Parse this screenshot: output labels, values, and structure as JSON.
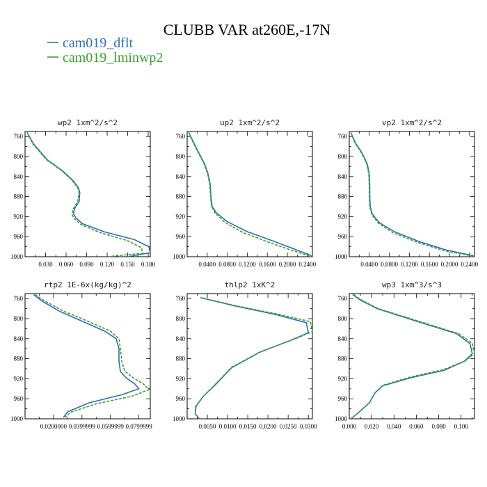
{
  "title": "CLUBB VAR at260E,-17N",
  "legend": [
    {
      "label": "cam019_dflt",
      "color": "#2f6db5",
      "dash": "solid"
    },
    {
      "label": "cam019_lminwp2",
      "color": "#3a9f2f",
      "dash": "dashed"
    }
  ],
  "y_axis": {
    "ticks": [
      760,
      800,
      840,
      880,
      920,
      960,
      1000
    ],
    "ylim": [
      750,
      1000
    ]
  },
  "chart_data": [
    {
      "type": "line",
      "title": "wp2  1xm^2/s^2",
      "xlim": [
        0.0,
        0.183
      ],
      "xticks": [
        0.03,
        0.06,
        0.09,
        0.12,
        0.15,
        0.18
      ],
      "xtick_labels": [
        "0.030",
        "0.060",
        "0.090",
        "0.120",
        "0.150",
        "0.180"
      ],
      "series": [
        {
          "name": "cam019_dflt",
          "x": [
            0.003,
            0.012,
            0.032,
            0.056,
            0.07,
            0.078,
            0.08,
            0.079,
            0.072,
            0.071,
            0.074,
            0.084,
            0.115,
            0.16,
            0.181,
            0.183,
            0.15
          ],
          "y": [
            752,
            774,
            806,
            830,
            848,
            862,
            872,
            890,
            905,
            915,
            922,
            934,
            950,
            966,
            980,
            992,
            1000
          ]
        },
        {
          "name": "cam019_lminwp2",
          "x": [
            0.003,
            0.011,
            0.031,
            0.055,
            0.069,
            0.077,
            0.079,
            0.077,
            0.07,
            0.069,
            0.072,
            0.082,
            0.11,
            0.15,
            0.17,
            0.172,
            0.12
          ],
          "y": [
            752,
            774,
            806,
            830,
            848,
            862,
            872,
            890,
            905,
            917,
            924,
            936,
            952,
            968,
            982,
            993,
            1000
          ]
        }
      ]
    },
    {
      "type": "line",
      "title": "up2  1xm^2/s^2",
      "xlim": [
        0.0,
        0.25
      ],
      "xticks": [
        0.04,
        0.08,
        0.12,
        0.16,
        0.2,
        0.24
      ],
      "xtick_labels": [
        "0.0400",
        "0.0800",
        "0.1200",
        "0.1600",
        "0.2000",
        "0.2400"
      ],
      "series": [
        {
          "name": "cam019_dflt",
          "x": [
            0.003,
            0.012,
            0.022,
            0.035,
            0.042,
            0.046,
            0.047,
            0.048,
            0.05,
            0.058,
            0.08,
            0.12,
            0.17,
            0.215,
            0.248
          ],
          "y": [
            752,
            770,
            790,
            815,
            835,
            855,
            870,
            885,
            900,
            912,
            930,
            950,
            968,
            985,
            998
          ]
        },
        {
          "name": "cam019_lminwp2",
          "x": [
            0.003,
            0.011,
            0.021,
            0.034,
            0.041,
            0.045,
            0.046,
            0.047,
            0.049,
            0.056,
            0.076,
            0.112,
            0.16,
            0.205,
            0.243
          ],
          "y": [
            752,
            770,
            790,
            815,
            835,
            855,
            870,
            885,
            900,
            913,
            932,
            952,
            970,
            986,
            998
          ]
        }
      ]
    },
    {
      "type": "line",
      "title": "vp2  1xm^2/s^2",
      "xlim": [
        0.0,
        0.25
      ],
      "xticks": [
        0.04,
        0.08,
        0.12,
        0.16,
        0.2,
        0.24
      ],
      "xtick_labels": [
        "0.0400",
        "0.0800",
        "0.1200",
        "0.1600",
        "0.2000",
        "0.2400"
      ],
      "series": [
        {
          "name": "cam019_dflt",
          "x": [
            0.003,
            0.012,
            0.025,
            0.036,
            0.04,
            0.041,
            0.041,
            0.042,
            0.046,
            0.06,
            0.09,
            0.14,
            0.195,
            0.248
          ],
          "y": [
            752,
            772,
            792,
            815,
            835,
            860,
            880,
            900,
            915,
            932,
            950,
            970,
            987,
            998
          ]
        },
        {
          "name": "cam019_lminwp2",
          "x": [
            0.003,
            0.011,
            0.024,
            0.035,
            0.039,
            0.04,
            0.04,
            0.041,
            0.045,
            0.058,
            0.087,
            0.135,
            0.19,
            0.243
          ],
          "y": [
            752,
            772,
            792,
            815,
            835,
            860,
            880,
            900,
            916,
            933,
            952,
            971,
            988,
            998
          ]
        }
      ]
    },
    {
      "type": "line",
      "title": "rtp2  1E-6x(kg/kg)^2",
      "xlim": [
        0.0,
        0.088
      ],
      "xticks": [
        0.02,
        0.04,
        0.06,
        0.08
      ],
      "xtick_labels": [
        "0.0200000",
        "0.0399999",
        "0.0599999",
        "0.0799999"
      ],
      "series": [
        {
          "name": "cam019_dflt",
          "x": [
            0.006,
            0.012,
            0.024,
            0.04,
            0.056,
            0.064,
            0.066,
            0.066,
            0.067,
            0.071,
            0.077,
            0.08,
            0.068,
            0.045,
            0.03,
            0.027
          ],
          "y": [
            752,
            765,
            785,
            805,
            825,
            840,
            860,
            885,
            905,
            918,
            930,
            940,
            952,
            968,
            986,
            997
          ]
        },
        {
          "name": "cam019_lminwp2",
          "x": [
            0.007,
            0.014,
            0.027,
            0.044,
            0.06,
            0.066,
            0.067,
            0.068,
            0.07,
            0.076,
            0.083,
            0.087,
            0.075,
            0.05,
            0.032,
            0.028
          ],
          "y": [
            752,
            765,
            785,
            805,
            825,
            840,
            860,
            885,
            905,
            918,
            930,
            942,
            955,
            970,
            987,
            997
          ]
        }
      ]
    },
    {
      "type": "line",
      "title": "thlp2  1xK^2",
      "xlim": [
        0.0,
        0.031
      ],
      "xticks": [
        0.005,
        0.01,
        0.015,
        0.02,
        0.025,
        0.03
      ],
      "xtick_labels": [
        "0.0050",
        "0.0100",
        "0.0150",
        "0.0200",
        "0.0250",
        "0.0300"
      ],
      "series": [
        {
          "name": "cam019_dflt",
          "x": [
            0.0033,
            0.012,
            0.022,
            0.0295,
            0.03,
            0.026,
            0.018,
            0.011,
            0.007,
            0.004,
            0.0022,
            0.002,
            0.003
          ],
          "y": [
            758,
            775,
            792,
            808,
            828,
            842,
            867,
            898,
            932,
            955,
            975,
            990,
            1000
          ]
        },
        {
          "name": "cam019_lminwp2",
          "x": [
            0.0033,
            0.0125,
            0.023,
            0.0305,
            0.031,
            0.0265,
            0.0182,
            0.011,
            0.007,
            0.004,
            0.0021,
            0.002,
            0.003
          ],
          "y": [
            758,
            775,
            792,
            806,
            826,
            841,
            866,
            897,
            931,
            955,
            975,
            990,
            1000
          ]
        }
      ]
    },
    {
      "type": "line",
      "title": "wp3  1xm^3/s^3",
      "xlim": [
        0.0,
        0.112
      ],
      "xticks": [
        0.0,
        0.02,
        0.04,
        0.06,
        0.08,
        0.1
      ],
      "xtick_labels": [
        "0.000",
        "0.020",
        "0.040",
        "0.060",
        "0.080",
        "0.100"
      ],
      "series": [
        {
          "name": "cam019_dflt",
          "x": [
            0.003,
            0.01,
            0.025,
            0.06,
            0.096,
            0.108,
            0.11,
            0.103,
            0.085,
            0.055,
            0.03,
            0.023,
            0.018,
            0.008,
            0.002
          ],
          "y": [
            752,
            763,
            780,
            805,
            830,
            850,
            870,
            885,
            903,
            918,
            934,
            948,
            968,
            988,
            999
          ]
        },
        {
          "name": "cam019_lminwp2",
          "x": [
            0.004,
            0.011,
            0.026,
            0.062,
            0.098,
            0.11,
            0.112,
            0.104,
            0.084,
            0.054,
            0.03,
            0.023,
            0.018,
            0.008,
            0.002
          ],
          "y": [
            752,
            763,
            780,
            805,
            830,
            849,
            869,
            884,
            902,
            917,
            933,
            948,
            968,
            988,
            999
          ]
        }
      ]
    }
  ]
}
